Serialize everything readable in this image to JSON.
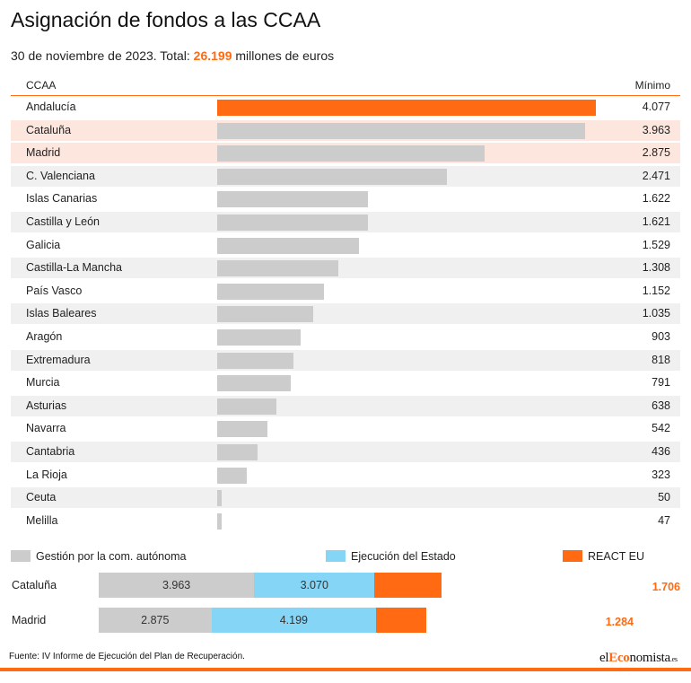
{
  "title": "Asignación de fondos a las CCAA",
  "subtitle": {
    "prefix": "30 de noviembre de 2023. Total: ",
    "total": "26.199",
    "suffix": " millones de euros"
  },
  "colors": {
    "accent": "#ff6a13",
    "bar": "#cccccc",
    "highlight_row": "#fde6de",
    "stripe_row": "#f0f0f0",
    "estado": "#85d5f7"
  },
  "chart_data": [
    {
      "type": "bar",
      "orientation": "horizontal",
      "column_headers": [
        "CCAA",
        "Mínimo"
      ],
      "categories": [
        "Andalucía",
        "Cataluña",
        "Madrid",
        "C. Valenciana",
        "Islas Canarias",
        "Castilla y León",
        "Galicia",
        "Castilla-La Mancha",
        "País Vasco",
        "Islas Baleares",
        "Aragón",
        "Extremadura",
        "Murcia",
        "Asturias",
        "Navarra",
        "Cantabria",
        "La Rioja",
        "Ceuta",
        "Melilla"
      ],
      "values": [
        4077,
        3963,
        2875,
        2471,
        1622,
        1621,
        1529,
        1308,
        1152,
        1035,
        903,
        818,
        791,
        638,
        542,
        436,
        323,
        50,
        47
      ],
      "labels": [
        "4.077",
        "3.963",
        "2.875",
        "2.471",
        "1.622",
        "1.621",
        "1.529",
        "1.308",
        "1.152",
        "1.035",
        "903",
        "818",
        "791",
        "638",
        "542",
        "436",
        "323",
        "50",
        "47"
      ],
      "highlighted": [
        "Andalucía",
        "Cataluña",
        "Madrid"
      ],
      "xlim": [
        0,
        4077
      ],
      "grid": false
    },
    {
      "type": "bar",
      "orientation": "horizontal",
      "stacked": true,
      "categories": [
        "Cataluña",
        "Madrid"
      ],
      "series": [
        {
          "name": "Gestión por la com. autónoma",
          "color": "#cccccc",
          "values": [
            3963,
            2875
          ],
          "labels": [
            "3.963",
            "2.875"
          ]
        },
        {
          "name": "Ejecución del Estado",
          "color": "#85d5f7",
          "values": [
            3070,
            4199
          ],
          "labels": [
            "3.070",
            "4.199"
          ]
        },
        {
          "name": "REACT EU",
          "color": "#ff6a13",
          "values": [
            1706,
            1284
          ],
          "labels": [
            "1.706",
            "1.284"
          ]
        }
      ],
      "legend": "top"
    }
  ],
  "footer": {
    "source": "Fuente: IV Informe de Ejecución del Plan de Recuperación.",
    "logo_el": "el",
    "logo_eco": "Eco",
    "logo_nomista": "nomista",
    "logo_es": ".es"
  }
}
